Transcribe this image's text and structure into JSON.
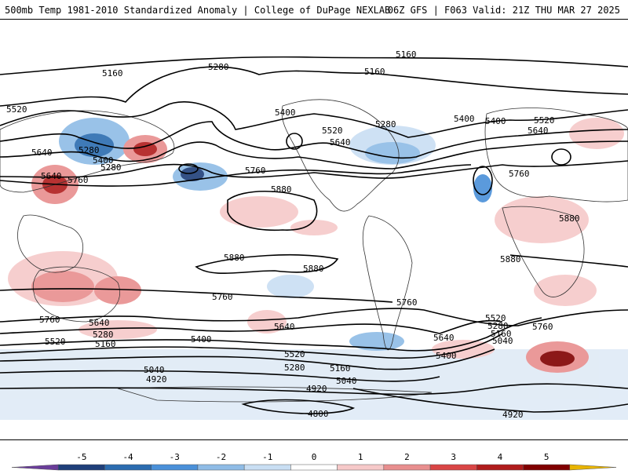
{
  "header": {
    "left": "500mb Temp 1981-2010 Standardized Anomaly | College of DuPage NEXLAB",
    "right": "06Z GFS | F063 Valid: 21Z THU MAR 27 2025"
  },
  "contour_labels": [
    "5160",
    "5280",
    "5520",
    "5640",
    "5400",
    "5280",
    "5400",
    "5640",
    "5760",
    "5280",
    "5160",
    "5400",
    "5520",
    "5640",
    "5760",
    "5880",
    "5160",
    "5400",
    "5280",
    "5640",
    "5520",
    "5760",
    "5880",
    "5880",
    "5880",
    "5880",
    "5760",
    "5760",
    "5640",
    "5520",
    "5280",
    "5160",
    "5040",
    "5400",
    "5640",
    "5520",
    "5280",
    "5160",
    "4920",
    "5040",
    "4920",
    "4800",
    "5760",
    "5640",
    "5520",
    "5280",
    "5160",
    "5040",
    "5400",
    "5760",
    "4920"
  ],
  "colorbar": {
    "ticks": [
      "-5",
      "-4",
      "-3",
      "-2",
      "-1",
      "0",
      "1",
      "2",
      "3",
      "4",
      "5"
    ],
    "colors": [
      "#6a3d9a",
      "#1f3f7a",
      "#2b6cb0",
      "#4a90d9",
      "#8fbce6",
      "#c9def3",
      "#ffffff",
      "#f6c9c9",
      "#e88e8e",
      "#d94545",
      "#b01c1c",
      "#800000",
      "#e8b400"
    ]
  }
}
